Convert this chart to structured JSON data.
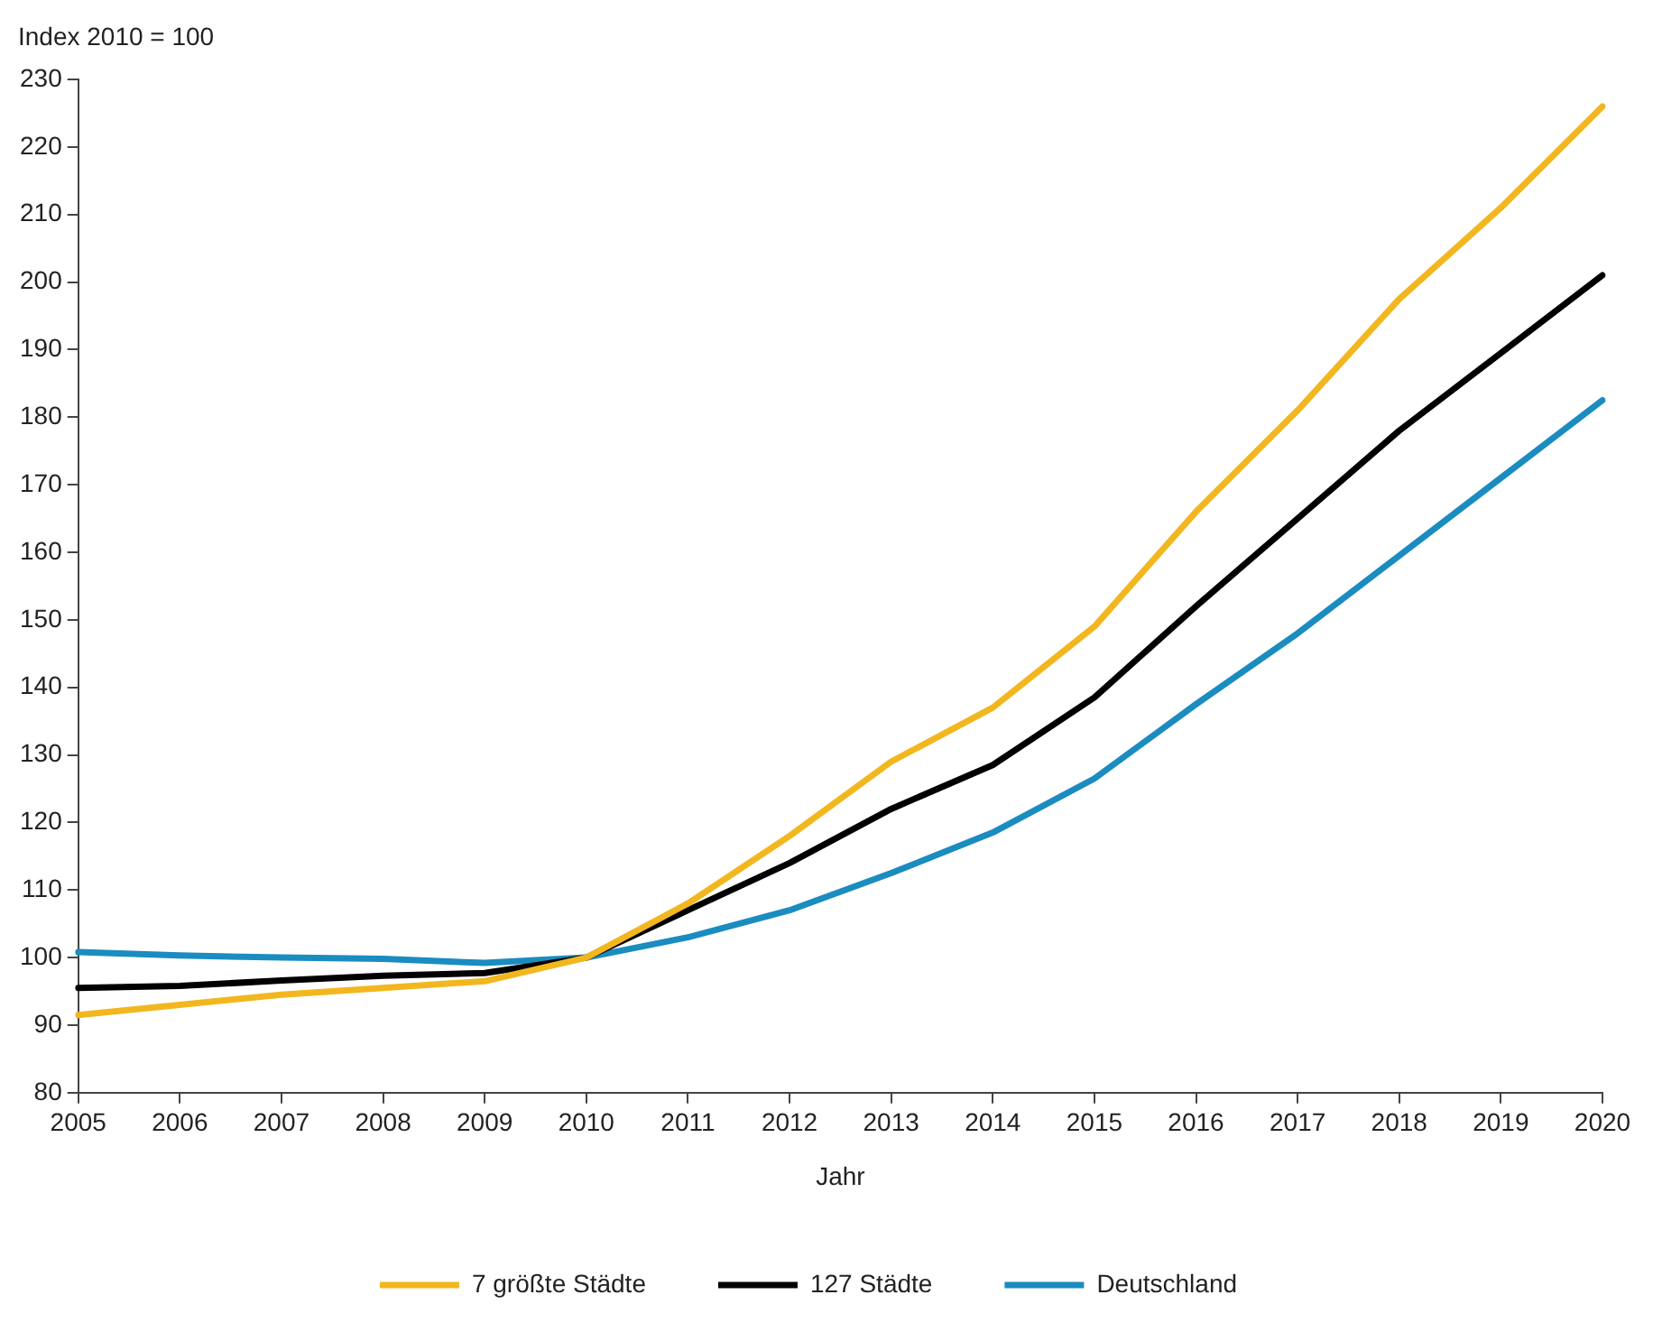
{
  "chart_data": {
    "type": "line",
    "ylabel": "Index 2010 = 100",
    "xlabel": "Jahr",
    "categories": [
      "2005",
      "2006",
      "2007",
      "2008",
      "2009",
      "2010",
      "2011",
      "2012",
      "2013",
      "2014",
      "2015",
      "2016",
      "2017",
      "2018",
      "2019",
      "2020"
    ],
    "series": [
      {
        "name": "7 größte Städte",
        "color": "#f2b71f",
        "values": [
          91.5,
          93,
          94.5,
          95.5,
          96.5,
          100,
          108,
          118,
          129,
          137,
          149,
          166,
          181,
          197.5,
          211,
          226
        ]
      },
      {
        "name": "127 Städte",
        "color": "#000000",
        "values": [
          95.5,
          95.8,
          96.6,
          97.3,
          97.7,
          100,
          107,
          114,
          122,
          128.5,
          138.5,
          152,
          165,
          178,
          189.5,
          201
        ]
      },
      {
        "name": "Deutschland",
        "color": "#1a8cc0",
        "values": [
          100.8,
          100.3,
          100,
          99.8,
          99.2,
          100,
          103,
          107,
          112.5,
          118.5,
          126.5,
          137.5,
          148,
          159.5,
          171,
          182.5
        ]
      }
    ],
    "ylim": [
      80,
      230
    ],
    "yticks": [
      80,
      90,
      100,
      110,
      120,
      130,
      140,
      150,
      160,
      170,
      180,
      190,
      200,
      210,
      220,
      230
    ],
    "grid": false,
    "legend": "bottom",
    "marker": "none",
    "line_style": "solid"
  }
}
